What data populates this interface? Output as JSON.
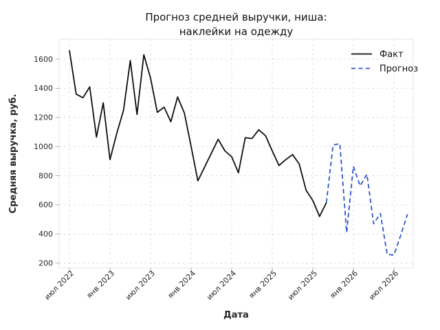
{
  "title": {
    "line1": "Прогноз средней выручки, ниша:",
    "line2": "наклейки на одежду"
  },
  "axes": {
    "xlabel": "Дата",
    "ylabel": "Средняя выручка, руб."
  },
  "legend": {
    "position": "upper right",
    "items": [
      "Факт",
      "Прогноз"
    ]
  },
  "colors": {
    "fact": "#0d0d0d",
    "forecast": "#2b55c9",
    "grid": "#cfcfcf",
    "text": "#262626"
  },
  "chart_data": {
    "type": "line",
    "title": "Прогноз средней выручки, ниша: наклейки на одежду",
    "xlabel": "Дата",
    "ylabel": "Средняя выручка, руб.",
    "grid": true,
    "legend_position": "upper right",
    "ylim": [
      166,
      1737
    ],
    "y_ticks": [
      200,
      400,
      600,
      800,
      1000,
      1200,
      1400,
      1600
    ],
    "x_ticks": [
      {
        "index": 0,
        "label": "июл 2022"
      },
      {
        "index": 6,
        "label": "янв 2023"
      },
      {
        "index": 12,
        "label": "июл 2023"
      },
      {
        "index": 18,
        "label": "янв 2024"
      },
      {
        "index": 24,
        "label": "июл 2024"
      },
      {
        "index": 30,
        "label": "янв 2025"
      },
      {
        "index": 36,
        "label": "июл 2025"
      },
      {
        "index": 42,
        "label": "янв 2026"
      },
      {
        "index": 48,
        "label": "июл 2026"
      }
    ],
    "series": [
      {
        "key": "fact",
        "name": "Факт",
        "style": "solid",
        "color": "#0d0d0d",
        "dates": [
          "2022-07",
          "2022-08",
          "2022-09",
          "2022-10",
          "2022-11",
          "2022-12",
          "2023-01",
          "2023-02",
          "2023-03",
          "2023-04",
          "2023-05",
          "2023-06",
          "2023-07",
          "2023-08",
          "2023-09",
          "2023-10",
          "2023-11",
          "2023-12",
          "2024-01",
          "2024-02",
          "2024-03",
          "2024-04",
          "2024-05",
          "2024-06",
          "2024-07",
          "2024-08",
          "2024-09",
          "2024-10",
          "2024-11",
          "2024-12",
          "2025-01",
          "2025-02",
          "2025-03",
          "2025-04",
          "2025-05",
          "2025-06",
          "2025-07",
          "2025-08",
          "2025-09"
        ],
        "values": [
          1660,
          1360,
          1335,
          1410,
          1065,
          1300,
          910,
          1090,
          1250,
          1590,
          1220,
          1630,
          1470,
          1235,
          1270,
          1170,
          1340,
          1230,
          1000,
          765,
          860,
          955,
          1050,
          970,
          930,
          820,
          1060,
          1055,
          1115,
          1075,
          970,
          870,
          910,
          945,
          880,
          700,
          630,
          520,
          615
        ]
      },
      {
        "key": "forecast",
        "name": "Прогноз",
        "style": "dashed",
        "color": "#2b55c9",
        "dates": [
          "2025-09",
          "2025-10",
          "2025-11",
          "2025-12",
          "2026-01",
          "2026-02",
          "2026-03",
          "2026-04",
          "2026-05",
          "2026-06",
          "2026-07",
          "2026-08",
          "2026-09"
        ],
        "values": [
          615,
          1010,
          1020,
          410,
          865,
          730,
          810,
          470,
          540,
          260,
          255,
          390,
          535
        ]
      }
    ]
  }
}
